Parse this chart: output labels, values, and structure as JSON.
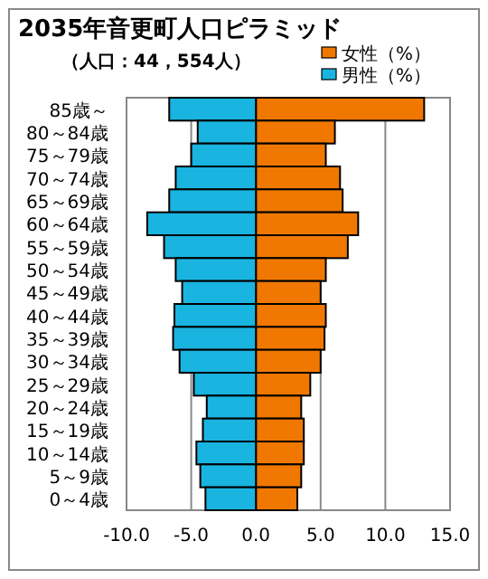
{
  "chart_data": {
    "type": "bar",
    "orientation": "horizontal",
    "title": "2035年音更町人口ピラミッド",
    "subtitle": "（人口：44，554人）",
    "categories": [
      "85歳～",
      "80～84歳",
      "75～79歳",
      "70～74歳",
      "65～69歳",
      "60～64歳",
      "55～59歳",
      "50～54歳",
      "45～49歳",
      "40～44歳",
      "35～39歳",
      "30～34歳",
      "25～29歳",
      "20～24歳",
      "15～19歳",
      "10～14歳",
      "5～9歳",
      "0～4歳"
    ],
    "series": [
      {
        "name": "女性（%）",
        "color": "#f07800",
        "values": [
          13.0,
          6.1,
          5.4,
          6.5,
          6.7,
          7.9,
          7.1,
          5.4,
          5.0,
          5.4,
          5.3,
          5.0,
          4.2,
          3.5,
          3.7,
          3.7,
          3.5,
          3.2
        ]
      },
      {
        "name": "男性（%）",
        "color": "#19b4e0",
        "values": [
          -6.7,
          -4.5,
          -5.0,
          -6.2,
          -6.7,
          -8.4,
          -7.1,
          -6.2,
          -5.7,
          -6.3,
          -6.4,
          -5.9,
          -4.8,
          -3.8,
          -4.1,
          -4.6,
          -4.3,
          -3.9
        ]
      }
    ],
    "xlim": [
      -10,
      15
    ],
    "xticks": [
      {
        "value": -10,
        "label": "-10.0"
      },
      {
        "value": -5,
        "label": "-5.0"
      },
      {
        "value": 0,
        "label": "0.0"
      },
      {
        "value": 5,
        "label": "5.0"
      },
      {
        "value": 10,
        "label": "10.0"
      },
      {
        "value": 15,
        "label": "15.0"
      }
    ],
    "stacked": true,
    "grid": "x",
    "legend": "top right"
  }
}
